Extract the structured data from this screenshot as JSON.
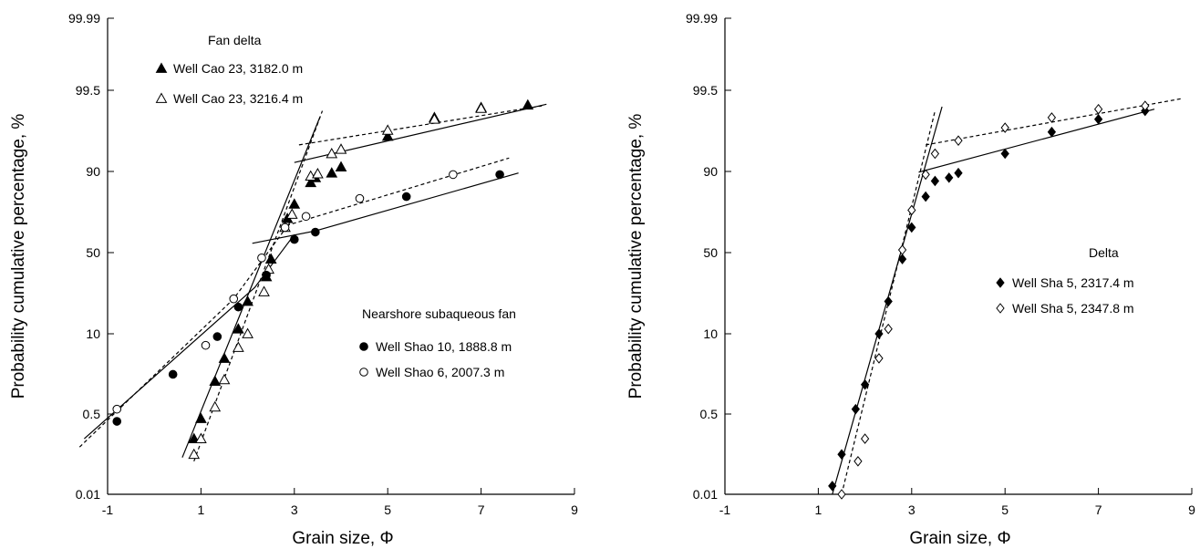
{
  "chart_data": [
    {
      "type": "scatter",
      "x_scale": "linear",
      "y_scale": "probability",
      "xlabel": "Grain size, Φ",
      "ylabel": "Probability cumulative percentage, %",
      "xlim": [
        -1,
        9
      ],
      "ylim": [
        0.01,
        99.99
      ],
      "x_ticks": [
        "-1",
        "1",
        "3",
        "5",
        "7",
        "9"
      ],
      "y_ticks": [
        "0.01",
        "0.5",
        "10",
        "50",
        "90",
        "99.5",
        "99.99"
      ],
      "groups": [
        {
          "title": "Fan delta",
          "series": [
            {
              "name": "Well Cao 23, 3182.0 m",
              "marker": "filled-triangle",
              "line_style": "solid",
              "points": [
                [
                  0.85,
                  0.15
                ],
                [
                  1.0,
                  0.4
                ],
                [
                  1.3,
                  1.7
                ],
                [
                  1.5,
                  4.0
                ],
                [
                  1.8,
                  11.0
                ],
                [
                  2.0,
                  19.0
                ],
                [
                  2.4,
                  31.0
                ],
                [
                  2.5,
                  44.0
                ],
                [
                  2.85,
                  64.0
                ],
                [
                  3.0,
                  71.0
                ],
                [
                  3.35,
                  83.0
                ],
                [
                  3.45,
                  86.0
                ],
                [
                  3.8,
                  89.0
                ],
                [
                  4.0,
                  90.5
                ],
                [
                  5.0,
                  94.0
                ],
                [
                  6.0,
                  96.2
                ],
                [
                  7.0,
                  97.4
                ],
                [
                  8.0,
                  97.7
                ]
              ]
            },
            {
              "name": "Well Cao 23, 3216.4 m",
              "marker": "hollow-triangle",
              "line_style": "dashed",
              "points": [
                [
                  0.85,
                  0.07
                ],
                [
                  1.0,
                  0.15
                ],
                [
                  1.3,
                  0.65
                ],
                [
                  1.5,
                  1.8
                ],
                [
                  1.8,
                  6.0
                ],
                [
                  2.0,
                  10.0
                ],
                [
                  2.35,
                  23.0
                ],
                [
                  2.45,
                  36.0
                ],
                [
                  2.8,
                  60.0
                ],
                [
                  2.95,
                  66.0
                ],
                [
                  3.35,
                  87.0
                ],
                [
                  3.5,
                  88.5
                ],
                [
                  3.8,
                  92.0
                ],
                [
                  4.0,
                  92.5
                ],
                [
                  5.0,
                  94.7
                ],
                [
                  6.0,
                  96.0
                ],
                [
                  7.0,
                  97.3
                ]
              ]
            }
          ]
        },
        {
          "title": "Nearshore subaqueous fan",
          "series": [
            {
              "name": "Well Shao 10, 1888.8 m",
              "marker": "filled-circle",
              "line_style": "solid",
              "points": [
                [
                  -0.8,
                  0.35
                ],
                [
                  0.4,
                  2.2
                ],
                [
                  1.35,
                  9.0
                ],
                [
                  1.8,
                  17.0
                ],
                [
                  2.4,
                  32.0
                ],
                [
                  3.0,
                  55.0
                ],
                [
                  3.45,
                  58.0
                ],
                [
                  5.4,
                  75.0
                ],
                [
                  7.4,
                  88.0
                ]
              ]
            },
            {
              "name": "Well Shao 6, 2007.3 m",
              "marker": "hollow-circle",
              "line_style": "dashed",
              "points": [
                [
                  -0.8,
                  0.6
                ],
                [
                  1.1,
                  6.5
                ],
                [
                  1.7,
                  20.0
                ],
                [
                  2.3,
                  45.0
                ],
                [
                  2.8,
                  60.0
                ],
                [
                  3.25,
                  65.0
                ],
                [
                  4.4,
                  74.0
                ],
                [
                  6.4,
                  88.0
                ]
              ]
            }
          ]
        }
      ]
    },
    {
      "type": "scatter",
      "x_scale": "linear",
      "y_scale": "probability",
      "xlabel": "Grain size, Φ",
      "ylabel": "Probability cumulative percentage, %",
      "xlim": [
        -1,
        9
      ],
      "ylim": [
        0.01,
        99.99
      ],
      "x_ticks": [
        "-1",
        "1",
        "3",
        "5",
        "7",
        "9"
      ],
      "y_ticks": [
        "0.01",
        "0.5",
        "10",
        "50",
        "90",
        "99.5",
        "99.99"
      ],
      "groups": [
        {
          "title": "Delta",
          "series": [
            {
              "name": "Well Sha 5, 2317.4 m",
              "marker": "filled-diamond",
              "line_style": "solid",
              "points": [
                [
                  1.3,
                  0.015
                ],
                [
                  1.5,
                  0.07
                ],
                [
                  1.8,
                  0.6
                ],
                [
                  2.0,
                  1.5
                ],
                [
                  2.3,
                  10.0
                ],
                [
                  2.5,
                  19.0
                ],
                [
                  2.8,
                  44.0
                ],
                [
                  3.0,
                  60.0
                ],
                [
                  3.3,
                  75.0
                ],
                [
                  3.5,
                  84.0
                ],
                [
                  3.8,
                  86.0
                ],
                [
                  4.0,
                  89.0
                ],
                [
                  5.0,
                  92.0
                ],
                [
                  6.0,
                  94.5
                ],
                [
                  7.0,
                  96.0
                ],
                [
                  8.0,
                  97.0
                ]
              ]
            },
            {
              "name": "Well Sha 5, 2347.8 m",
              "marker": "hollow-diamond",
              "line_style": "dashed",
              "points": [
                [
                  1.5,
                  0.01
                ],
                [
                  1.85,
                  0.05
                ],
                [
                  2.0,
                  0.15
                ],
                [
                  2.3,
                  4.0
                ],
                [
                  2.5,
                  11.0
                ],
                [
                  2.8,
                  51.0
                ],
                [
                  3.0,
                  68.0
                ],
                [
                  3.3,
                  88.0
                ],
                [
                  3.5,
                  92.0
                ],
                [
                  4.0,
                  93.5
                ],
                [
                  5.0,
                  95.0
                ],
                [
                  6.0,
                  96.2
                ],
                [
                  7.0,
                  97.2
                ],
                [
                  8.0,
                  97.6
                ]
              ]
            }
          ]
        }
      ]
    }
  ]
}
